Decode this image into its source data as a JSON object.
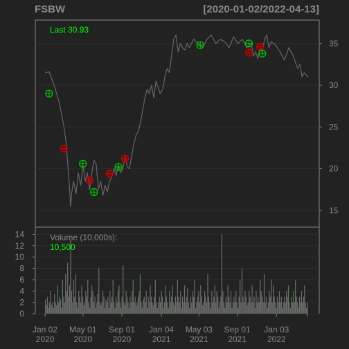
{
  "header": {
    "symbol": "FSBW",
    "date_range": "[2020-01-02/2022-04-13]"
  },
  "colors": {
    "background": "#222222",
    "frame": "#888888",
    "grid": "#2e2e2e",
    "price_line": "#666666",
    "volume_bar": "#6b6b6b",
    "volume_bar_up": "#5d7a5d",
    "text_muted": "#8a8a8a",
    "text_green": "#00ff00",
    "buy_marker": "#00cc00",
    "sell_marker": "#cc0000"
  },
  "chart_data": [
    {
      "type": "line",
      "panel": "price",
      "series": [
        {
          "x": [
            "2020-01-02",
            "2020-01-15",
            "2020-01-31",
            "2020-02-14",
            "2020-02-21",
            "2020-03-02",
            "2020-03-09",
            "2020-03-13",
            "2020-03-18",
            "2020-03-23",
            "2020-03-26",
            "2020-04-01",
            "2020-04-09",
            "2020-04-16",
            "2020-04-24",
            "2020-05-01",
            "2020-05-08",
            "2020-05-15",
            "2020-05-22",
            "2020-05-29",
            "2020-06-05",
            "2020-06-12",
            "2020-06-19",
            "2020-06-26",
            "2020-07-03",
            "2020-07-10",
            "2020-07-17",
            "2020-07-24",
            "2020-07-31",
            "2020-08-07",
            "2020-08-14",
            "2020-08-21",
            "2020-08-28",
            "2020-09-04",
            "2020-09-11",
            "2020-09-18",
            "2020-09-25",
            "2020-10-02",
            "2020-10-09",
            "2020-10-16",
            "2020-10-23",
            "2020-10-30",
            "2020-11-06",
            "2020-11-13",
            "2020-11-20",
            "2020-11-27",
            "2020-12-04",
            "2020-12-11",
            "2020-12-18",
            "2020-12-31",
            "2021-01-08",
            "2021-01-15",
            "2021-01-22",
            "2021-01-29",
            "2021-02-05",
            "2021-02-12",
            "2021-02-19",
            "2021-02-26",
            "2021-03-05",
            "2021-03-12",
            "2021-03-19",
            "2021-03-26",
            "2021-04-02",
            "2021-04-16",
            "2021-04-30",
            "2021-05-14",
            "2021-05-28",
            "2021-06-11",
            "2021-06-25",
            "2021-07-09",
            "2021-07-23",
            "2021-08-06",
            "2021-08-20",
            "2021-09-03",
            "2021-09-17",
            "2021-10-01",
            "2021-10-15",
            "2021-10-22",
            "2021-10-29",
            "2021-11-05",
            "2021-11-12",
            "2021-11-19",
            "2021-11-26",
            "2021-12-03",
            "2021-12-10",
            "2021-12-17",
            "2021-12-31",
            "2022-01-14",
            "2022-01-28",
            "2022-02-11",
            "2022-02-25",
            "2022-03-11",
            "2022-03-18",
            "2022-03-25",
            "2022-04-01",
            "2022-04-13"
          ],
          "values": [
            31.5,
            31.6,
            30.0,
            28.2,
            27.0,
            25.0,
            23.0,
            21.0,
            18.5,
            15.5,
            17.0,
            18.5,
            17.0,
            19.5,
            18.0,
            20.5,
            18.5,
            19.5,
            17.5,
            19.5,
            21.0,
            20.5,
            17.5,
            18.5,
            16.8,
            18.0,
            17.2,
            18.5,
            19.0,
            20.0,
            19.2,
            20.5,
            19.5,
            20.0,
            21.5,
            20.2,
            20.0,
            21.5,
            23.0,
            24.0,
            24.5,
            25.5,
            27.0,
            28.5,
            29.5,
            29.0,
            30.0,
            28.5,
            30.5,
            29.0,
            29.5,
            31.0,
            32.0,
            31.5,
            33.5,
            35.5,
            36.0,
            34.0,
            35.0,
            34.5,
            34.2,
            35.0,
            34.5,
            35.5,
            35.0,
            34.5,
            35.5,
            36.0,
            35.0,
            35.5,
            35.2,
            34.5,
            35.8,
            35.0,
            35.5,
            34.5,
            35.0,
            33.5,
            34.0,
            33.2,
            34.5,
            34.0,
            35.5,
            36.0,
            34.5,
            35.2,
            34.8,
            34.0,
            33.0,
            34.5,
            33.5,
            32.0,
            32.5,
            31.0,
            31.5,
            30.93
          ]
        }
      ],
      "markers": [
        {
          "date": "2020-01-15",
          "value": 29.0,
          "type": "buy"
        },
        {
          "date": "2020-03-02",
          "value": 22.4,
          "type": "sell"
        },
        {
          "date": "2020-05-01",
          "value": 20.6,
          "type": "buy"
        },
        {
          "date": "2020-05-22",
          "value": 18.6,
          "type": "sell"
        },
        {
          "date": "2020-06-05",
          "value": 17.2,
          "type": "buy"
        },
        {
          "date": "2020-07-24",
          "value": 19.4,
          "type": "sell"
        },
        {
          "date": "2020-08-21",
          "value": 20.2,
          "type": "buy"
        },
        {
          "date": "2020-09-11",
          "value": 21.2,
          "type": "sell"
        },
        {
          "date": "2021-05-07",
          "value": 34.8,
          "type": "buy"
        },
        {
          "date": "2021-10-08",
          "value": 33.9,
          "type": "sell"
        },
        {
          "date": "2021-10-08",
          "value": 35.0,
          "type": "buy"
        },
        {
          "date": "2021-11-12",
          "value": 34.6,
          "type": "sell"
        },
        {
          "date": "2021-11-19",
          "value": 33.8,
          "type": "buy"
        }
      ],
      "last_label": "Last 30.93",
      "ylim": [
        13.0,
        37.8
      ],
      "yticks": [
        15,
        20,
        25,
        30,
        35
      ],
      "grid": true
    },
    {
      "type": "bar",
      "panel": "volume",
      "title": "Volume (10,000s):",
      "last_value_label": "10,500",
      "ylim": [
        0,
        14.3
      ],
      "yticks": [
        0,
        2,
        4,
        6,
        8,
        10,
        12,
        14
      ],
      "values": [
        2.5,
        1.5,
        3,
        1,
        2,
        4,
        1.5,
        2,
        1,
        3.5,
        2,
        1.5,
        5,
        2,
        3,
        2.5,
        1,
        6,
        3,
        2,
        7,
        4,
        9,
        3,
        5,
        13,
        4,
        2,
        6,
        3,
        7,
        2,
        1,
        4,
        3,
        2,
        5,
        3,
        1.5,
        2,
        4,
        3,
        6,
        2,
        1,
        3,
        5,
        4,
        2,
        3,
        1,
        2,
        3.5,
        8,
        2,
        1.5,
        2,
        4,
        3,
        1,
        2.5,
        2,
        3,
        1,
        4,
        2,
        3,
        6,
        2,
        1,
        3,
        2,
        4,
        5,
        2,
        1,
        3,
        8.5,
        2,
        1.5,
        4,
        3,
        2,
        1,
        3,
        2,
        4,
        6,
        2,
        3,
        1.5,
        2,
        3,
        4,
        7,
        2,
        1,
        2.5,
        3,
        2,
        4,
        1,
        3,
        2,
        5,
        3,
        2,
        1.5,
        3,
        6,
        2,
        1,
        2,
        3,
        2,
        4,
        3,
        1,
        2,
        5,
        3,
        2,
        1,
        4,
        2,
        3,
        5,
        2,
        1.5,
        3,
        2,
        6,
        3,
        2,
        4,
        1,
        3,
        2,
        5,
        2,
        3,
        4.5,
        2,
        1,
        3,
        2,
        4,
        3,
        6,
        1,
        2,
        3,
        4,
        2,
        5,
        3,
        1.5,
        2,
        4,
        3,
        2,
        7,
        3,
        2,
        1,
        4,
        2,
        3,
        5,
        2,
        4,
        3,
        1,
        2,
        3,
        14,
        4,
        2,
        1,
        3,
        2,
        5,
        3,
        2,
        4,
        1,
        2,
        3,
        2,
        4,
        2,
        1,
        3,
        6,
        2,
        8,
        3,
        2,
        4,
        3,
        1.5,
        2,
        4,
        3,
        2,
        5,
        2,
        3,
        1,
        4,
        2,
        3,
        2,
        6,
        4,
        3,
        2,
        7,
        2,
        3,
        1,
        2,
        4,
        3,
        6,
        2,
        5,
        3,
        2,
        1,
        3,
        2,
        4,
        2,
        3,
        1,
        2,
        3,
        2,
        4,
        3,
        5,
        2,
        1,
        3,
        2,
        4,
        2,
        6,
        3,
        2,
        1,
        3,
        2,
        4,
        2,
        3,
        5,
        2,
        1,
        2
      ],
      "x_start": "2020-01-02",
      "x_end": "2022-04-13"
    }
  ],
  "x_axis": {
    "ticks": [
      {
        "date": "2020-01-02",
        "line1": "Jan 02",
        "line2": "2020"
      },
      {
        "date": "2020-05-01",
        "line1": "May 01",
        "line2": "2020"
      },
      {
        "date": "2020-09-01",
        "line1": "Sep 01",
        "line2": "2020"
      },
      {
        "date": "2021-01-04",
        "line1": "Jan 04",
        "line2": "2021"
      },
      {
        "date": "2021-05-03",
        "line1": "May 03",
        "line2": "2021"
      },
      {
        "date": "2021-09-01",
        "line1": "Sep 01",
        "line2": "2021"
      },
      {
        "date": "2022-01-03",
        "line1": "Jan 03",
        "line2": "2022"
      }
    ]
  }
}
